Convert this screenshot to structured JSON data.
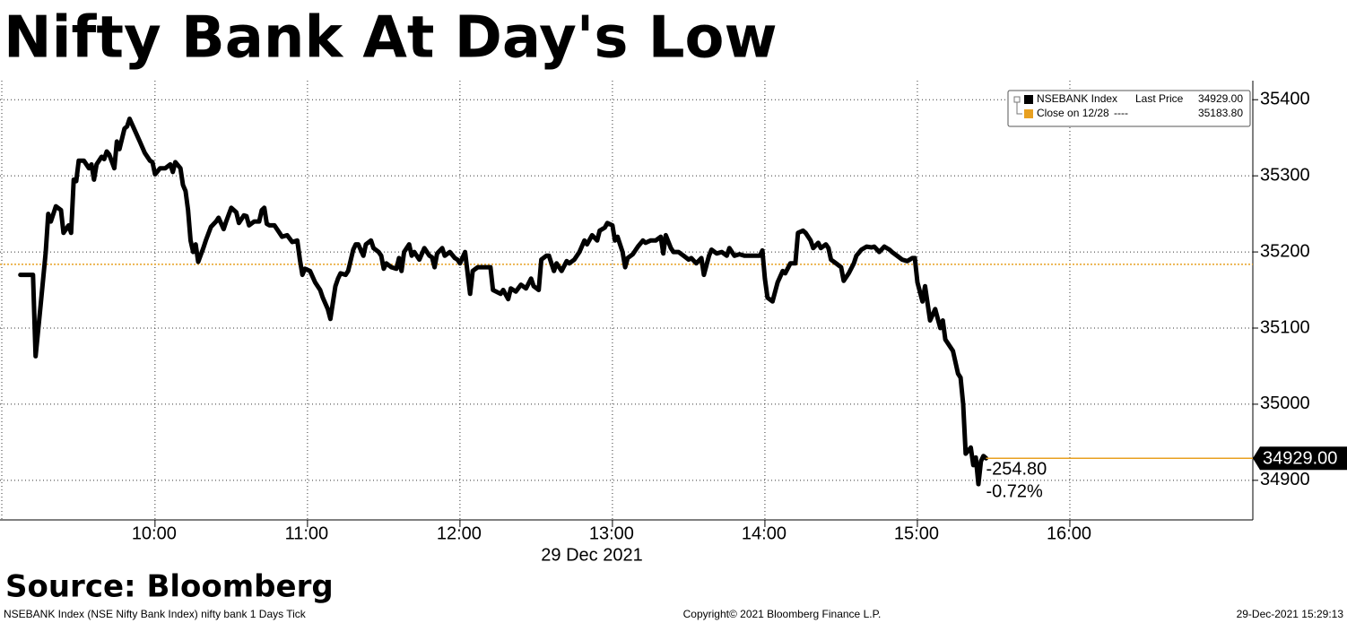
{
  "chart_data": {
    "type": "line",
    "title": "Nifty Bank At Day's Low",
    "x_label": "29 Dec 2021",
    "source": "Source: Bloomberg",
    "footer_left": "NSEBANK Index (NSE Nifty Bank Index) nifty bank 1 Days  Tick",
    "footer_center": "Copyright© 2021 Bloomberg Finance L.P.",
    "footer_right": "29-Dec-2021 15:29:13",
    "x": [
      "09:07",
      "09:12",
      "09:13",
      "09:15",
      "09:17",
      "09:18",
      "09:19",
      "09:21",
      "09:23",
      "09:24",
      "09:26",
      "09:27",
      "09:28",
      "09:29",
      "09:30",
      "09:32",
      "09:34",
      "09:35",
      "09:36",
      "09:37",
      "09:39",
      "09:40",
      "09:41",
      "09:42",
      "09:44",
      "09:45",
      "09:46",
      "09:48",
      "09:49",
      "09:50",
      "09:52",
      "09:54",
      "09:56",
      "09:58",
      "09:59",
      "10:00",
      "10:02",
      "10:04",
      "10:06",
      "10:07",
      "10:08",
      "10:10",
      "10:11",
      "10:12",
      "10:13",
      "10:14",
      "10:15",
      "10:16",
      "10:17",
      "10:19",
      "10:20",
      "10:22",
      "10:24",
      "10:25",
      "10:27",
      "10:28",
      "10:30",
      "10:32",
      "10:33",
      "10:35",
      "10:36",
      "10:37",
      "10:39",
      "10:41",
      "10:42",
      "10:43",
      "10:44",
      "10:45",
      "10:47",
      "10:49",
      "10:50",
      "10:52",
      "10:54",
      "10:56",
      "10:57",
      "10:58",
      "10:59",
      "11:01",
      "11:03",
      "11:05",
      "11:06",
      "11:08",
      "11:09",
      "11:11",
      "11:12",
      "11:13",
      "11:15",
      "11:16",
      "11:18",
      "11:19",
      "11:20",
      "11:22",
      "11:23",
      "11:25",
      "11:26",
      "11:28",
      "11:29",
      "11:30",
      "11:31",
      "11:33",
      "11:35",
      "11:36",
      "11:37",
      "11:38",
      "11:40",
      "11:41",
      "11:42",
      "11:44",
      "11:46",
      "11:48",
      "11:49",
      "11:50",
      "11:51",
      "11:53",
      "11:54",
      "11:56",
      "11:58",
      "11:59",
      "12:00",
      "12:02",
      "12:04",
      "12:05",
      "12:07",
      "12:09",
      "12:12",
      "12:13",
      "12:16",
      "12:17",
      "12:19",
      "12:20",
      "12:22",
      "12:24",
      "12:26",
      "12:28",
      "12:29",
      "12:31",
      "12:32",
      "12:34",
      "12:35",
      "12:37",
      "12:38",
      "12:40",
      "12:42",
      "12:43",
      "12:45",
      "12:47",
      "12:49",
      "12:50",
      "12:52",
      "12:54",
      "12:55",
      "12:57",
      "12:58",
      "13:00",
      "13:01",
      "13:02",
      "13:04",
      "13:05",
      "13:06",
      "13:08",
      "13:10",
      "13:12",
      "13:13",
      "13:15",
      "13:17",
      "13:19",
      "13:20",
      "13:21",
      "13:23",
      "13:24",
      "13:26",
      "13:28",
      "13:30",
      "13:31",
      "13:33",
      "13:35",
      "13:36",
      "13:38",
      "13:39",
      "13:41",
      "13:43",
      "13:45",
      "13:46",
      "13:48",
      "13:50",
      "13:52",
      "13:55",
      "13:58",
      "13:59",
      "14:00",
      "14:01",
      "14:03",
      "14:05",
      "14:07",
      "14:08",
      "14:10",
      "14:12",
      "14:13",
      "14:15",
      "14:16",
      "14:18",
      "14:19",
      "14:21",
      "14:22",
      "14:24",
      "14:25",
      "14:26",
      "14:28",
      "14:30",
      "14:31",
      "14:33",
      "14:35",
      "14:36",
      "14:38",
      "14:40",
      "14:42",
      "14:43",
      "14:45",
      "14:47",
      "14:49",
      "14:50",
      "14:52",
      "14:54",
      "14:56",
      "14:58",
      "14:59",
      "15:00",
      "15:02",
      "15:03",
      "15:05",
      "15:07",
      "15:09",
      "15:10",
      "15:11",
      "15:14",
      "15:16",
      "15:17",
      "15:18",
      "15:19",
      "15:21",
      "15:22",
      "15:23",
      "15:24",
      "15:25",
      "15:26",
      "15:27"
    ],
    "series": [
      {
        "name": "NSEBANK Index",
        "legend_label": "Last Price",
        "last_label": "34929.00",
        "color": "#000000",
        "values": [
          35170,
          35170,
          35063,
          35130,
          35200,
          35250,
          35240,
          35260,
          35255,
          35225,
          35235,
          35225,
          35295,
          35293,
          35320,
          35320,
          35310,
          35315,
          35295,
          35315,
          35325,
          35322,
          35332,
          35328,
          35310,
          35345,
          35335,
          35362,
          35365,
          35375,
          35360,
          35345,
          35330,
          35320,
          35318,
          35302,
          35310,
          35310,
          35315,
          35305,
          35318,
          35310,
          35288,
          35280,
          35255,
          35215,
          35200,
          35210,
          35187,
          35205,
          35215,
          35233,
          35240,
          35245,
          35230,
          35240,
          35258,
          35252,
          35238,
          35248,
          35247,
          35235,
          35240,
          35240,
          35255,
          35258,
          35237,
          35235,
          35235,
          35225,
          35220,
          35222,
          35213,
          35215,
          35190,
          35170,
          35178,
          35175,
          35160,
          35150,
          35140,
          35125,
          35112,
          35155,
          35165,
          35172,
          35170,
          35175,
          35203,
          35210,
          35210,
          35195,
          35210,
          35215,
          35205,
          35200,
          35195,
          35178,
          35185,
          35180,
          35178,
          35192,
          35175,
          35200,
          35210,
          35195,
          35200,
          35190,
          35205,
          35195,
          35193,
          35180,
          35198,
          35205,
          35195,
          35200,
          35192,
          35190,
          35185,
          35200,
          35145,
          35175,
          35180,
          35180,
          35180,
          35150,
          35145,
          35150,
          35138,
          35152,
          35148,
          35157,
          35152,
          35165,
          35155,
          35150,
          35190,
          35195,
          35195,
          35175,
          35185,
          35175,
          35188,
          35185,
          35190,
          35200,
          35215,
          35210,
          35222,
          35215,
          35228,
          35232,
          35238,
          35235,
          35215,
          35220,
          35200,
          35180,
          35192,
          35197,
          35207,
          35215,
          35212,
          35215,
          35215,
          35220,
          35198,
          35222,
          35205,
          35200,
          35200,
          35195,
          35190,
          35192,
          35185,
          35192,
          35170,
          35195,
          35203,
          35198,
          35200,
          35195,
          35205,
          35195,
          35197,
          35195,
          35195,
          35195,
          35202,
          35165,
          35140,
          35135,
          35160,
          35175,
          35172,
          35185,
          35185,
          35225,
          35228,
          35225,
          35215,
          35205,
          35212,
          35205,
          35210,
          35205,
          35190,
          35185,
          35180,
          35162,
          35172,
          35185,
          35195,
          35203,
          35207,
          35206,
          35207,
          35200,
          35207,
          35203,
          35200,
          35195,
          35190,
          35188,
          35192,
          35192,
          35160,
          35135,
          35155,
          35110,
          35125,
          35100,
          35110,
          35085,
          35070,
          35040,
          35035,
          35000,
          34935,
          34943,
          34920,
          34930,
          34895,
          34925,
          34932,
          34929
        ]
      }
    ],
    "reference": {
      "name": "Close on 12/28",
      "legend_label": "----",
      "value": 35183.8,
      "value_label": "35183.80",
      "color": "#e8a020"
    },
    "annotations": [
      "-254.80",
      "-0.72%"
    ],
    "xlim": [
      "08:59",
      "17:12"
    ],
    "xticks": [
      "10:00",
      "11:00",
      "12:00",
      "13:00",
      "14:00",
      "15:00",
      "16:00"
    ],
    "ylim": [
      34848,
      35425
    ],
    "yticks": [
      34900,
      35000,
      35100,
      35200,
      35300,
      35400
    ],
    "grid": true
  }
}
